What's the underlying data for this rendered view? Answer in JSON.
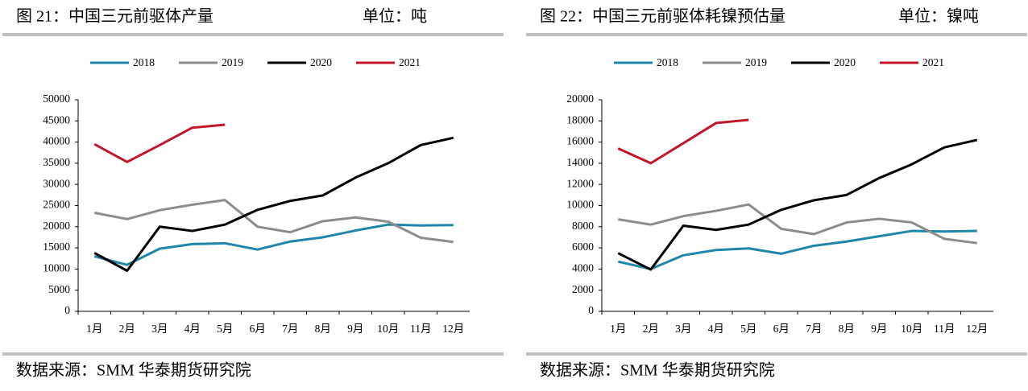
{
  "chart_data": [
    {
      "type": "line",
      "title": "图 21：中国三元前驱体产量",
      "unit": "单位：吨",
      "source": "数据来源：SMM 华泰期货研究院",
      "categories": [
        "1月",
        "2月",
        "3月",
        "4月",
        "5月",
        "6月",
        "7月",
        "8月",
        "9月",
        "10月",
        "11月",
        "12月"
      ],
      "series": [
        {
          "name": "2018",
          "color": "#1f86aa",
          "values": [
            13000,
            11000,
            14800,
            15900,
            16100,
            14600,
            16500,
            17500,
            19100,
            20500,
            20300,
            20400
          ]
        },
        {
          "name": "2019",
          "color": "#8c8c8c",
          "values": [
            23300,
            21800,
            23900,
            25200,
            26300,
            20000,
            18700,
            21300,
            22200,
            21200,
            17400,
            16400
          ]
        },
        {
          "name": "2020",
          "color": "#000000",
          "values": [
            13800,
            9600,
            20000,
            19000,
            20500,
            24000,
            26100,
            27400,
            31600,
            35000,
            39300,
            41000
          ]
        },
        {
          "name": "2021",
          "color": "#c0172b",
          "values": [
            39500,
            35300,
            39300,
            43400,
            44100,
            null,
            null,
            null,
            null,
            null,
            null,
            null
          ]
        }
      ],
      "ylim": [
        0,
        50000
      ],
      "yticks": [
        0,
        5000,
        10000,
        15000,
        20000,
        25000,
        30000,
        35000,
        40000,
        45000,
        50000
      ],
      "legend": "top"
    },
    {
      "type": "line",
      "title": "图 22：中国三元前驱体耗镍预估量",
      "unit": "单位：镍吨",
      "source": "数据来源：SMM 华泰期货研究院",
      "categories": [
        "1月",
        "2月",
        "3月",
        "4月",
        "5月",
        "6月",
        "7月",
        "8月",
        "9月",
        "10月",
        "11月",
        "12月"
      ],
      "series": [
        {
          "name": "2018",
          "color": "#1f86aa",
          "values": [
            4700,
            4000,
            5300,
            5800,
            5950,
            5450,
            6200,
            6600,
            7100,
            7600,
            7550,
            7600
          ]
        },
        {
          "name": "2019",
          "color": "#8c8c8c",
          "values": [
            8700,
            8200,
            9000,
            9500,
            10100,
            7800,
            7300,
            8400,
            8750,
            8400,
            6850,
            6450
          ]
        },
        {
          "name": "2020",
          "color": "#000000",
          "values": [
            5500,
            3950,
            8100,
            7700,
            8200,
            9600,
            10500,
            11000,
            12600,
            13900,
            15500,
            16200
          ]
        },
        {
          "name": "2021",
          "color": "#c0172b",
          "values": [
            15400,
            14000,
            15900,
            17800,
            18100,
            null,
            null,
            null,
            null,
            null,
            null,
            null
          ]
        }
      ],
      "ylim": [
        0,
        20000
      ],
      "yticks": [
        0,
        2000,
        4000,
        6000,
        8000,
        10000,
        12000,
        14000,
        16000,
        18000,
        20000
      ],
      "legend": "top"
    }
  ]
}
